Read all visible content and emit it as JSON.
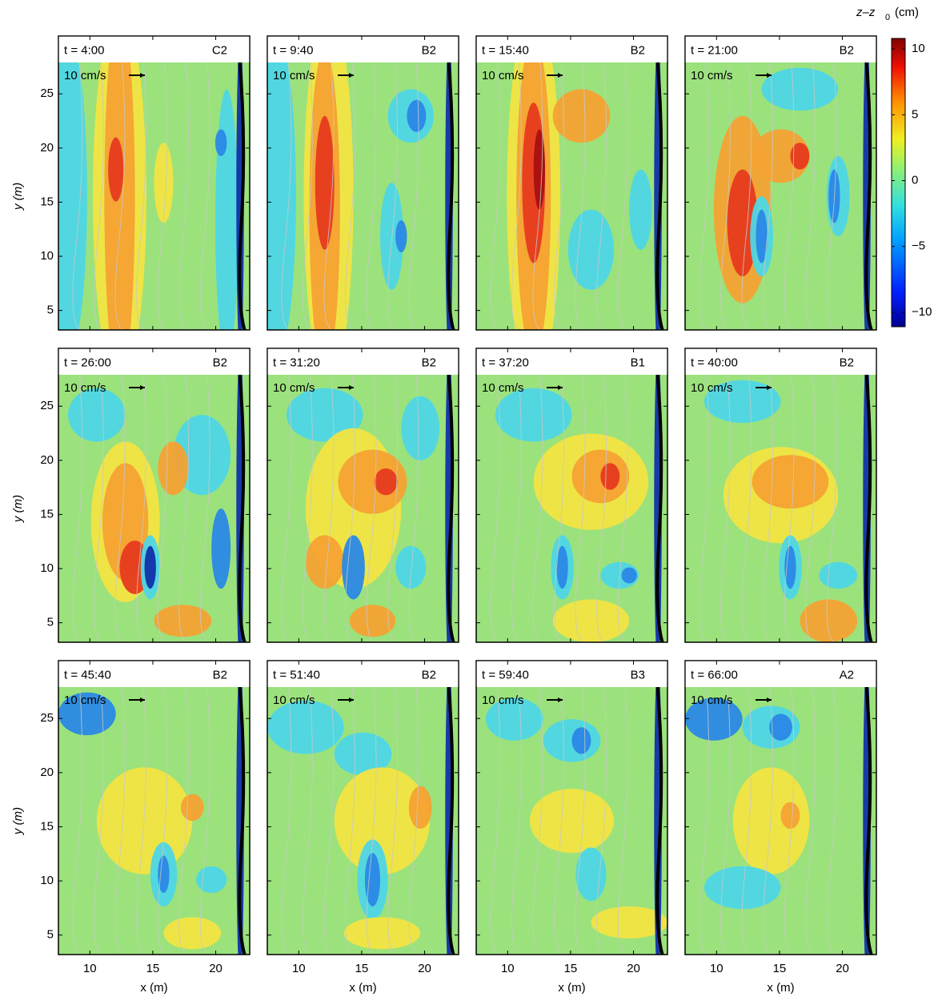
{
  "chart_data": [
    {
      "type": "contour",
      "title": "t = 4:00",
      "label": "C2",
      "scale_label": "10 cm/s",
      "ylabel": "y (m)",
      "xlim": [
        7.5,
        22.7
      ],
      "ylim": [
        3.2,
        27.9
      ],
      "xticks": [
        10,
        15,
        20
      ],
      "yticks": [
        5,
        10,
        15,
        20,
        25
      ],
      "show_xtick_labels": false,
      "show_ytick_labels": true
    },
    {
      "type": "contour",
      "title": "t = 9:40",
      "label": "B2",
      "scale_label": "10 cm/s",
      "xlim": [
        7.5,
        22.7
      ],
      "ylim": [
        3.2,
        27.9
      ],
      "xticks": [
        10,
        15,
        20
      ],
      "yticks": [
        5,
        10,
        15,
        20,
        25
      ],
      "show_xtick_labels": false,
      "show_ytick_labels": false
    },
    {
      "type": "contour",
      "title": "t = 15:40",
      "label": "B2",
      "scale_label": "10 cm/s",
      "xlim": [
        7.5,
        22.7
      ],
      "ylim": [
        3.2,
        27.9
      ],
      "xticks": [
        10,
        15,
        20
      ],
      "yticks": [
        5,
        10,
        15,
        20,
        25
      ],
      "show_xtick_labels": false,
      "show_ytick_labels": false
    },
    {
      "type": "contour",
      "title": "t = 21:00",
      "label": "B2",
      "scale_label": "10 cm/s",
      "xlim": [
        7.5,
        22.7
      ],
      "ylim": [
        3.2,
        27.9
      ],
      "xticks": [
        10,
        15,
        20
      ],
      "yticks": [
        5,
        10,
        15,
        20,
        25
      ],
      "show_xtick_labels": false,
      "show_ytick_labels": false
    },
    {
      "type": "contour",
      "title": "t = 26:00",
      "label": "B2",
      "scale_label": "10 cm/s",
      "ylabel": "y (m)",
      "xlim": [
        7.5,
        22.7
      ],
      "ylim": [
        3.2,
        27.9
      ],
      "xticks": [
        10,
        15,
        20
      ],
      "yticks": [
        5,
        10,
        15,
        20,
        25
      ],
      "show_xtick_labels": false,
      "show_ytick_labels": true
    },
    {
      "type": "contour",
      "title": "t = 31:20",
      "label": "B2",
      "scale_label": "10 cm/s",
      "xlim": [
        7.5,
        22.7
      ],
      "ylim": [
        3.2,
        27.9
      ],
      "xticks": [
        10,
        15,
        20
      ],
      "yticks": [
        5,
        10,
        15,
        20,
        25
      ],
      "show_xtick_labels": false,
      "show_ytick_labels": false
    },
    {
      "type": "contour",
      "title": "t = 37:20",
      "label": "B1",
      "scale_label": "10 cm/s",
      "xlim": [
        7.5,
        22.7
      ],
      "ylim": [
        3.2,
        27.9
      ],
      "xticks": [
        10,
        15,
        20
      ],
      "yticks": [
        5,
        10,
        15,
        20,
        25
      ],
      "show_xtick_labels": false,
      "show_ytick_labels": false
    },
    {
      "type": "contour",
      "title": "t = 40:00",
      "label": "B2",
      "scale_label": "10 cm/s",
      "xlim": [
        7.5,
        22.7
      ],
      "ylim": [
        3.2,
        27.9
      ],
      "xticks": [
        10,
        15,
        20
      ],
      "yticks": [
        5,
        10,
        15,
        20,
        25
      ],
      "show_xtick_labels": false,
      "show_ytick_labels": false
    },
    {
      "type": "contour",
      "title": "t = 45:40",
      "label": "B2",
      "scale_label": "10 cm/s",
      "ylabel": "y (m)",
      "xlabel": "x (m)",
      "xlim": [
        7.5,
        22.7
      ],
      "ylim": [
        3.2,
        27.9
      ],
      "xticks": [
        10,
        15,
        20
      ],
      "yticks": [
        5,
        10,
        15,
        20,
        25
      ],
      "show_xtick_labels": true,
      "show_ytick_labels": true
    },
    {
      "type": "contour",
      "title": "t = 51:40",
      "label": "B2",
      "scale_label": "10 cm/s",
      "xlabel": "x (m)",
      "xlim": [
        7.5,
        22.7
      ],
      "ylim": [
        3.2,
        27.9
      ],
      "xticks": [
        10,
        15,
        20
      ],
      "yticks": [
        5,
        10,
        15,
        20,
        25
      ],
      "show_xtick_labels": true,
      "show_ytick_labels": false
    },
    {
      "type": "contour",
      "title": "t = 59:40",
      "label": "B3",
      "scale_label": "10 cm/s",
      "xlabel": "x (m)",
      "xlim": [
        7.5,
        22.7
      ],
      "ylim": [
        3.2,
        27.9
      ],
      "xticks": [
        10,
        15,
        20
      ],
      "yticks": [
        5,
        10,
        15,
        20,
        25
      ],
      "show_xtick_labels": true,
      "show_ytick_labels": false
    },
    {
      "type": "contour",
      "title": "t = 66:00",
      "label": "A2",
      "scale_label": "10 cm/s",
      "xlabel": "x (m)",
      "xlim": [
        7.5,
        22.7
      ],
      "ylim": [
        3.2,
        27.9
      ],
      "xticks": [
        10,
        15,
        20
      ],
      "yticks": [
        5,
        10,
        15,
        20,
        25
      ],
      "show_xtick_labels": true,
      "show_ytick_labels": false
    }
  ],
  "colorbar": {
    "label": "z–z",
    "label_sub": "0",
    "unit": "(cm)",
    "clim": [
      -11.1,
      10.8
    ],
    "ticks": [
      10,
      5,
      0,
      {
        "value": -5,
        "label": "−5"
      },
      {
        "value": -10,
        "label": "−10"
      }
    ]
  }
}
